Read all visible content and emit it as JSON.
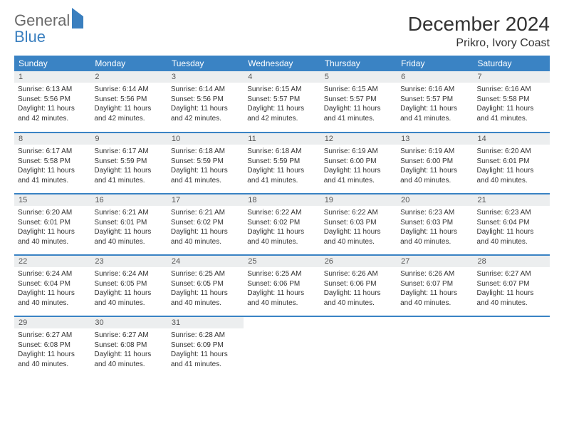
{
  "logo": {
    "general": "General",
    "blue": "Blue"
  },
  "title": "December 2024",
  "location": "Prikro, Ivory Coast",
  "colors": {
    "header_bg": "#3a83c4",
    "header_text": "#ffffff",
    "daynum_bg": "#eceeef",
    "rule": "#3a83c4",
    "logo_gray": "#6b6b6b",
    "logo_blue": "#3a7fbf"
  },
  "weekdays": [
    "Sunday",
    "Monday",
    "Tuesday",
    "Wednesday",
    "Thursday",
    "Friday",
    "Saturday"
  ],
  "weeks": [
    [
      {
        "n": "1",
        "sunrise": "Sunrise: 6:13 AM",
        "sunset": "Sunset: 5:56 PM",
        "daylight": "Daylight: 11 hours and 42 minutes."
      },
      {
        "n": "2",
        "sunrise": "Sunrise: 6:14 AM",
        "sunset": "Sunset: 5:56 PM",
        "daylight": "Daylight: 11 hours and 42 minutes."
      },
      {
        "n": "3",
        "sunrise": "Sunrise: 6:14 AM",
        "sunset": "Sunset: 5:56 PM",
        "daylight": "Daylight: 11 hours and 42 minutes."
      },
      {
        "n": "4",
        "sunrise": "Sunrise: 6:15 AM",
        "sunset": "Sunset: 5:57 PM",
        "daylight": "Daylight: 11 hours and 42 minutes."
      },
      {
        "n": "5",
        "sunrise": "Sunrise: 6:15 AM",
        "sunset": "Sunset: 5:57 PM",
        "daylight": "Daylight: 11 hours and 41 minutes."
      },
      {
        "n": "6",
        "sunrise": "Sunrise: 6:16 AM",
        "sunset": "Sunset: 5:57 PM",
        "daylight": "Daylight: 11 hours and 41 minutes."
      },
      {
        "n": "7",
        "sunrise": "Sunrise: 6:16 AM",
        "sunset": "Sunset: 5:58 PM",
        "daylight": "Daylight: 11 hours and 41 minutes."
      }
    ],
    [
      {
        "n": "8",
        "sunrise": "Sunrise: 6:17 AM",
        "sunset": "Sunset: 5:58 PM",
        "daylight": "Daylight: 11 hours and 41 minutes."
      },
      {
        "n": "9",
        "sunrise": "Sunrise: 6:17 AM",
        "sunset": "Sunset: 5:59 PM",
        "daylight": "Daylight: 11 hours and 41 minutes."
      },
      {
        "n": "10",
        "sunrise": "Sunrise: 6:18 AM",
        "sunset": "Sunset: 5:59 PM",
        "daylight": "Daylight: 11 hours and 41 minutes."
      },
      {
        "n": "11",
        "sunrise": "Sunrise: 6:18 AM",
        "sunset": "Sunset: 5:59 PM",
        "daylight": "Daylight: 11 hours and 41 minutes."
      },
      {
        "n": "12",
        "sunrise": "Sunrise: 6:19 AM",
        "sunset": "Sunset: 6:00 PM",
        "daylight": "Daylight: 11 hours and 41 minutes."
      },
      {
        "n": "13",
        "sunrise": "Sunrise: 6:19 AM",
        "sunset": "Sunset: 6:00 PM",
        "daylight": "Daylight: 11 hours and 40 minutes."
      },
      {
        "n": "14",
        "sunrise": "Sunrise: 6:20 AM",
        "sunset": "Sunset: 6:01 PM",
        "daylight": "Daylight: 11 hours and 40 minutes."
      }
    ],
    [
      {
        "n": "15",
        "sunrise": "Sunrise: 6:20 AM",
        "sunset": "Sunset: 6:01 PM",
        "daylight": "Daylight: 11 hours and 40 minutes."
      },
      {
        "n": "16",
        "sunrise": "Sunrise: 6:21 AM",
        "sunset": "Sunset: 6:01 PM",
        "daylight": "Daylight: 11 hours and 40 minutes."
      },
      {
        "n": "17",
        "sunrise": "Sunrise: 6:21 AM",
        "sunset": "Sunset: 6:02 PM",
        "daylight": "Daylight: 11 hours and 40 minutes."
      },
      {
        "n": "18",
        "sunrise": "Sunrise: 6:22 AM",
        "sunset": "Sunset: 6:02 PM",
        "daylight": "Daylight: 11 hours and 40 minutes."
      },
      {
        "n": "19",
        "sunrise": "Sunrise: 6:22 AM",
        "sunset": "Sunset: 6:03 PM",
        "daylight": "Daylight: 11 hours and 40 minutes."
      },
      {
        "n": "20",
        "sunrise": "Sunrise: 6:23 AM",
        "sunset": "Sunset: 6:03 PM",
        "daylight": "Daylight: 11 hours and 40 minutes."
      },
      {
        "n": "21",
        "sunrise": "Sunrise: 6:23 AM",
        "sunset": "Sunset: 6:04 PM",
        "daylight": "Daylight: 11 hours and 40 minutes."
      }
    ],
    [
      {
        "n": "22",
        "sunrise": "Sunrise: 6:24 AM",
        "sunset": "Sunset: 6:04 PM",
        "daylight": "Daylight: 11 hours and 40 minutes."
      },
      {
        "n": "23",
        "sunrise": "Sunrise: 6:24 AM",
        "sunset": "Sunset: 6:05 PM",
        "daylight": "Daylight: 11 hours and 40 minutes."
      },
      {
        "n": "24",
        "sunrise": "Sunrise: 6:25 AM",
        "sunset": "Sunset: 6:05 PM",
        "daylight": "Daylight: 11 hours and 40 minutes."
      },
      {
        "n": "25",
        "sunrise": "Sunrise: 6:25 AM",
        "sunset": "Sunset: 6:06 PM",
        "daylight": "Daylight: 11 hours and 40 minutes."
      },
      {
        "n": "26",
        "sunrise": "Sunrise: 6:26 AM",
        "sunset": "Sunset: 6:06 PM",
        "daylight": "Daylight: 11 hours and 40 minutes."
      },
      {
        "n": "27",
        "sunrise": "Sunrise: 6:26 AM",
        "sunset": "Sunset: 6:07 PM",
        "daylight": "Daylight: 11 hours and 40 minutes."
      },
      {
        "n": "28",
        "sunrise": "Sunrise: 6:27 AM",
        "sunset": "Sunset: 6:07 PM",
        "daylight": "Daylight: 11 hours and 40 minutes."
      }
    ],
    [
      {
        "n": "29",
        "sunrise": "Sunrise: 6:27 AM",
        "sunset": "Sunset: 6:08 PM",
        "daylight": "Daylight: 11 hours and 40 minutes."
      },
      {
        "n": "30",
        "sunrise": "Sunrise: 6:27 AM",
        "sunset": "Sunset: 6:08 PM",
        "daylight": "Daylight: 11 hours and 40 minutes."
      },
      {
        "n": "31",
        "sunrise": "Sunrise: 6:28 AM",
        "sunset": "Sunset: 6:09 PM",
        "daylight": "Daylight: 11 hours and 41 minutes."
      },
      null,
      null,
      null,
      null
    ]
  ]
}
